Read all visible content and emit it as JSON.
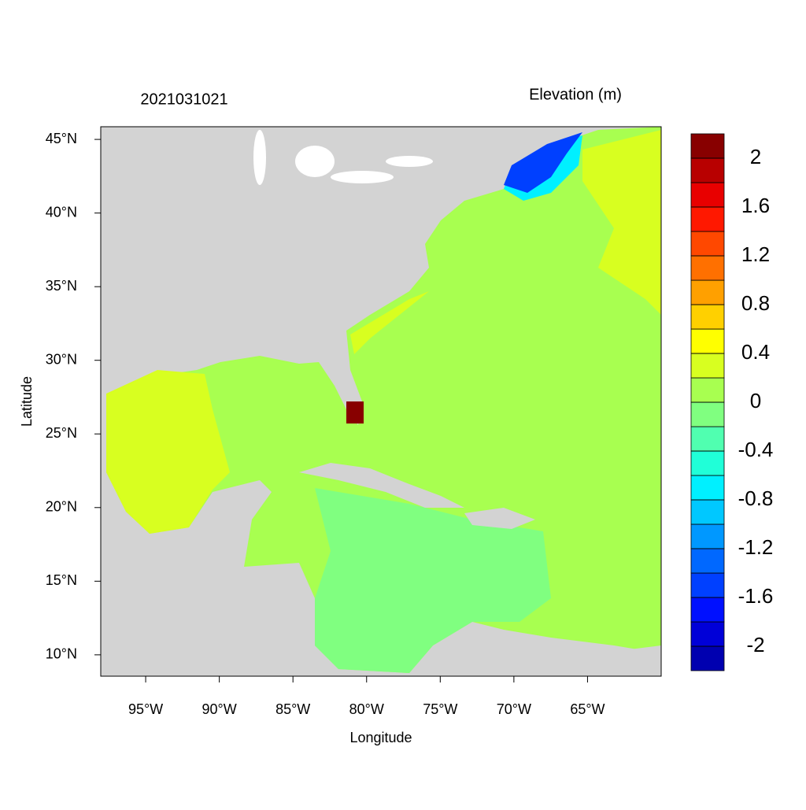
{
  "chart_data": {
    "type": "map",
    "title": "2021031021",
    "subtitle": "Elevation (m)",
    "x_label": "Longitude",
    "y_label": "Latitude",
    "xlim": [
      -98.05,
      -60.0
    ],
    "ylim": [
      8.55,
      45.86
    ],
    "xticks": [
      {
        "value": -95,
        "label": "95°W"
      },
      {
        "value": -90,
        "label": "90°W"
      },
      {
        "value": -85,
        "label": "85°W"
      },
      {
        "value": -80,
        "label": "80°W"
      },
      {
        "value": -75,
        "label": "75°W"
      },
      {
        "value": -70,
        "label": "70°W"
      },
      {
        "value": -65,
        "label": "65°W"
      }
    ],
    "yticks": [
      {
        "value": 10,
        "label": "10°N"
      },
      {
        "value": 15,
        "label": "15°N"
      },
      {
        "value": 20,
        "label": "20°N"
      },
      {
        "value": 25,
        "label": "25°N"
      },
      {
        "value": 30,
        "label": "30°N"
      },
      {
        "value": 35,
        "label": "35°N"
      },
      {
        "value": 40,
        "label": "40°N"
      },
      {
        "value": 45,
        "label": "45°N"
      }
    ],
    "colorbar": {
      "lim": [
        -2.2,
        2.2
      ],
      "ticks": [
        -2,
        -1.6,
        -1.2,
        -0.8,
        -0.4,
        0,
        0.4,
        0.8,
        1.2,
        1.6,
        2
      ],
      "colors": [
        "#0000b0",
        "#0000d8",
        "#0010ff",
        "#0040ff",
        "#0068ff",
        "#0098ff",
        "#00c8ff",
        "#00f0ff",
        "#20ffd8",
        "#50ffb0",
        "#80ff80",
        "#a8ff50",
        "#d8ff20",
        "#ffff00",
        "#ffd000",
        "#ffa000",
        "#ff7000",
        "#ff4800",
        "#ff1800",
        "#e80000",
        "#b80000",
        "#880000"
      ]
    }
  }
}
